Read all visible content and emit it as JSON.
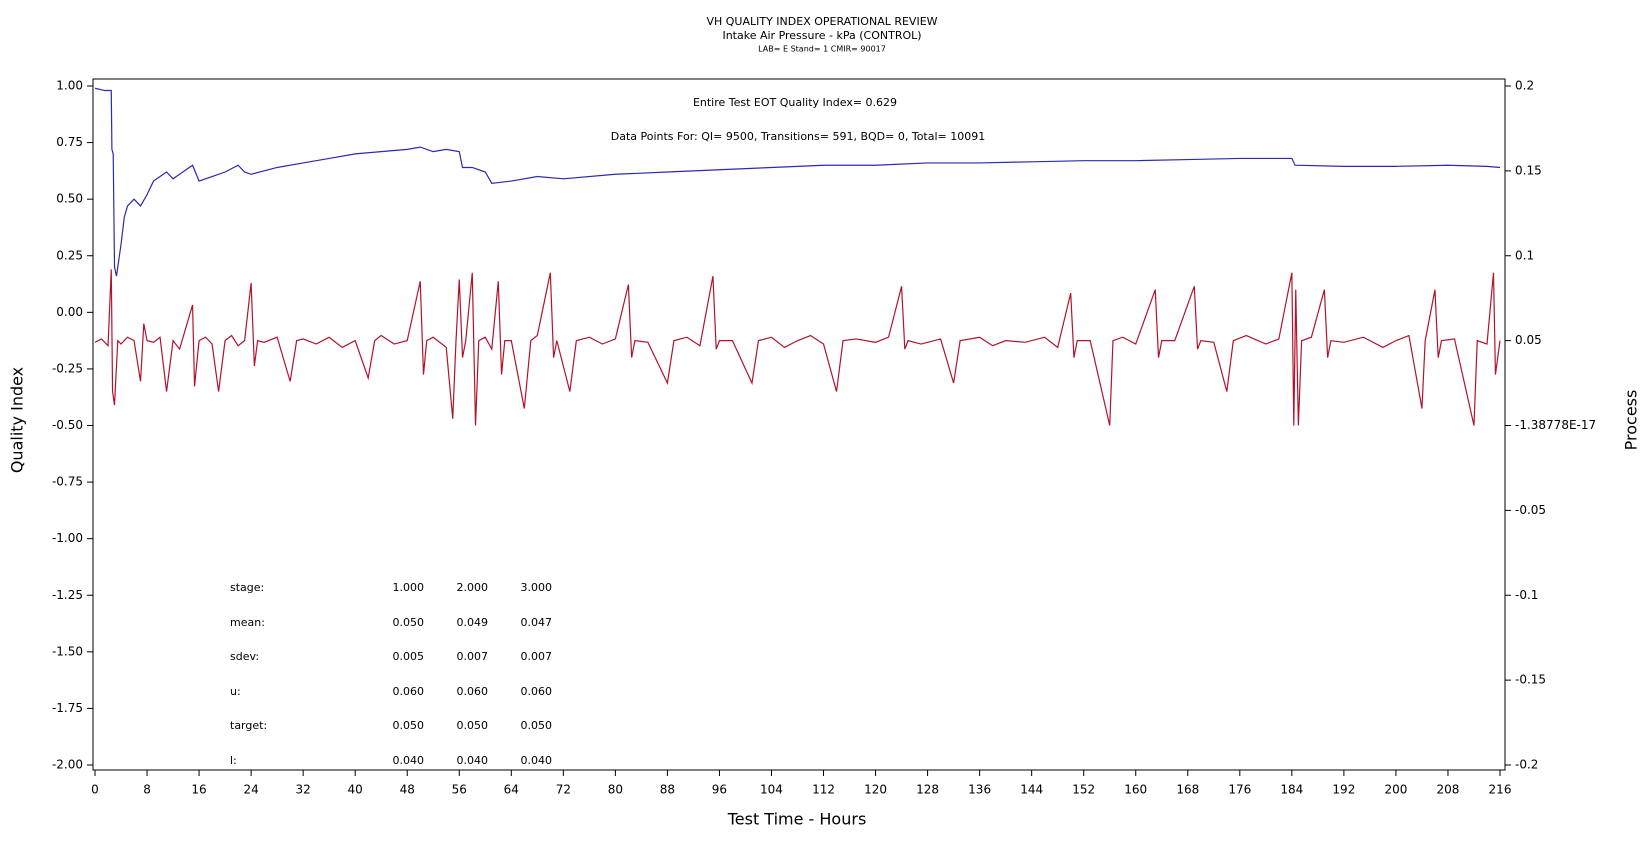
{
  "chart_data": {
    "type": "line",
    "title": "VH QUALITY INDEX OPERATIONAL REVIEW",
    "subtitle": "Intake Air Pressure - kPa (CONTROL)",
    "subtitle2": "LAB= E Stand= 1 CMIR= 90017",
    "annotations": [
      "Entire Test EOT Quality Index=   0.629",
      "Data Points For: QI=  9500, Transitions=   591, BQD=     0, Total= 10091"
    ],
    "x_label": "Test Time - Hours",
    "y_label": "Quality Index",
    "y2_label": "Process",
    "xlim": [
      0,
      216
    ],
    "xticks": [
      0,
      8,
      16,
      24,
      32,
      40,
      48,
      56,
      64,
      72,
      80,
      88,
      96,
      104,
      112,
      120,
      128,
      136,
      144,
      152,
      160,
      168,
      176,
      184,
      192,
      200,
      208,
      216
    ],
    "ylim": [
      -2,
      1
    ],
    "yticks": [
      {
        "value": 1,
        "label": "1.00"
      },
      0.75,
      {
        "value": 0.5,
        "label": "0.50"
      },
      0.25,
      {
        "value": 0,
        "label": "0.00"
      },
      -0.25,
      {
        "value": -0.5,
        "label": "-0.50"
      },
      -0.75,
      {
        "value": -1,
        "label": "-1.00"
      },
      -1.25,
      {
        "value": -1.5,
        "label": "-1.50"
      },
      -1.75,
      {
        "value": -2,
        "label": "-2.00"
      }
    ],
    "y2lim": [
      -0.2,
      0.2
    ],
    "y2ticks": [
      0.2,
      0.15,
      0.1,
      0.05,
      {
        "value": -1.38778e-17,
        "label": "-1.38778E-17"
      },
      -0.05,
      -0.1,
      -0.15,
      -0.2
    ],
    "series": [
      {
        "name": "Quality Index",
        "color": "#2a2ab4",
        "x": [
          0,
          1.5,
          2.5,
          2.6,
          2.8,
          3,
          3.3,
          4,
          4.5,
          5,
          6,
          7,
          8,
          9,
          10,
          11,
          12,
          13,
          14,
          15,
          16,
          18,
          20,
          22,
          23,
          24,
          28,
          32,
          36,
          40,
          44,
          48,
          50,
          52,
          54,
          56,
          56.5,
          58,
          60,
          61,
          64,
          68,
          72,
          80,
          88,
          96,
          104,
          112,
          120,
          128,
          136,
          144,
          152,
          160,
          168,
          176,
          184,
          184.5,
          192,
          200,
          208,
          214,
          216
        ],
        "values": [
          0.99,
          0.98,
          0.98,
          0.72,
          0.7,
          0.2,
          0.16,
          0.3,
          0.42,
          0.47,
          0.5,
          0.47,
          0.52,
          0.58,
          0.6,
          0.62,
          0.59,
          0.61,
          0.63,
          0.65,
          0.58,
          0.6,
          0.62,
          0.65,
          0.62,
          0.61,
          0.64,
          0.66,
          0.68,
          0.7,
          0.71,
          0.72,
          0.73,
          0.71,
          0.72,
          0.71,
          0.64,
          0.64,
          0.62,
          0.57,
          0.58,
          0.6,
          0.59,
          0.61,
          0.62,
          0.63,
          0.64,
          0.65,
          0.65,
          0.66,
          0.66,
          0.665,
          0.67,
          0.67,
          0.675,
          0.68,
          0.68,
          0.65,
          0.645,
          0.645,
          0.65,
          0.645,
          0.64
        ]
      },
      {
        "name": "Process",
        "color": "#b0142c",
        "axis": "y2",
        "x": [
          0,
          1,
          2,
          2.5,
          2.7,
          3,
          3.5,
          4,
          5,
          6,
          7,
          7.5,
          8,
          9,
          10,
          11,
          12,
          13,
          14,
          15,
          15.3,
          16,
          17,
          18,
          19,
          20,
          21,
          22,
          23,
          24,
          24.5,
          25,
          26,
          28,
          30,
          31,
          32,
          34,
          36,
          38,
          40,
          42,
          43,
          44,
          46,
          48,
          50,
          50.5,
          51,
          52,
          54,
          55,
          55.5,
          56,
          56.5,
          57,
          58,
          58.5,
          59,
          60,
          61,
          62,
          62.5,
          63,
          64,
          66,
          67,
          68,
          70,
          70.5,
          71,
          73,
          74,
          76,
          78,
          80,
          82,
          82.5,
          83,
          85,
          88,
          89,
          91,
          93,
          95,
          95.5,
          96,
          98,
          101,
          102,
          104,
          106,
          108,
          110,
          112,
          114,
          115,
          117,
          120,
          122,
          124,
          124.5,
          125,
          127,
          130,
          132,
          133,
          136,
          138,
          140,
          143,
          146,
          148,
          150,
          150.5,
          151,
          153,
          156,
          156.5,
          158,
          160,
          163,
          163.5,
          164,
          166,
          169,
          169.5,
          170,
          172,
          174,
          175,
          177,
          180,
          182,
          184,
          184.3,
          184.6,
          185,
          185.5,
          187,
          189,
          189.5,
          190,
          192,
          195,
          198,
          200,
          202,
          204,
          204.5,
          206,
          206.5,
          207,
          209,
          212,
          212.5,
          214,
          215,
          215.3,
          216
        ],
        "values": [
          0.049,
          0.051,
          0.047,
          0.092,
          0.02,
          0.012,
          0.05,
          0.048,
          0.052,
          0.05,
          0.026,
          0.06,
          0.05,
          0.049,
          0.052,
          0.02,
          0.05,
          0.045,
          0.058,
          0.071,
          0.023,
          0.05,
          0.052,
          0.048,
          0.02,
          0.05,
          0.053,
          0.047,
          0.05,
          0.084,
          0.035,
          0.05,
          0.049,
          0.052,
          0.026,
          0.05,
          0.051,
          0.048,
          0.052,
          0.046,
          0.05,
          0.028,
          0.05,
          0.053,
          0.048,
          0.05,
          0.085,
          0.03,
          0.05,
          0.052,
          0.046,
          0.004,
          0.05,
          0.086,
          0.04,
          0.05,
          0.09,
          0.0,
          0.05,
          0.052,
          0.045,
          0.085,
          0.03,
          0.05,
          0.05,
          0.01,
          0.05,
          0.053,
          0.09,
          0.04,
          0.05,
          0.02,
          0.05,
          0.052,
          0.048,
          0.051,
          0.083,
          0.04,
          0.05,
          0.049,
          0.025,
          0.05,
          0.052,
          0.047,
          0.088,
          0.045,
          0.05,
          0.05,
          0.025,
          0.05,
          0.052,
          0.046,
          0.05,
          0.053,
          0.048,
          0.02,
          0.05,
          0.051,
          0.049,
          0.052,
          0.082,
          0.045,
          0.05,
          0.048,
          0.051,
          0.025,
          0.05,
          0.052,
          0.047,
          0.05,
          0.049,
          0.052,
          0.046,
          0.078,
          0.04,
          0.05,
          0.05,
          0.0,
          0.05,
          0.052,
          0.048,
          0.08,
          0.04,
          0.05,
          0.05,
          0.082,
          0.045,
          0.05,
          0.049,
          0.02,
          0.05,
          0.053,
          0.048,
          0.051,
          0.09,
          0.0,
          0.08,
          0.0,
          0.05,
          0.052,
          0.08,
          0.04,
          0.05,
          0.049,
          0.052,
          0.046,
          0.05,
          0.053,
          0.01,
          0.05,
          0.08,
          0.04,
          0.05,
          0.051,
          0.0,
          0.05,
          0.048,
          0.09,
          0.03,
          0.05
        ]
      }
    ],
    "table": {
      "rows": [
        [
          "stage:",
          "1.000",
          "2.000",
          "3.000"
        ],
        [
          "mean:",
          "0.050",
          "0.049",
          "0.047"
        ],
        [
          "sdev:",
          "0.005",
          "0.007",
          "0.007"
        ],
        [
          "u:",
          "0.060",
          "0.060",
          "0.060"
        ],
        [
          "target:",
          "0.050",
          "0.050",
          "0.050"
        ],
        [
          "l:",
          "0.040",
          "0.040",
          "0.040"
        ]
      ]
    }
  }
}
